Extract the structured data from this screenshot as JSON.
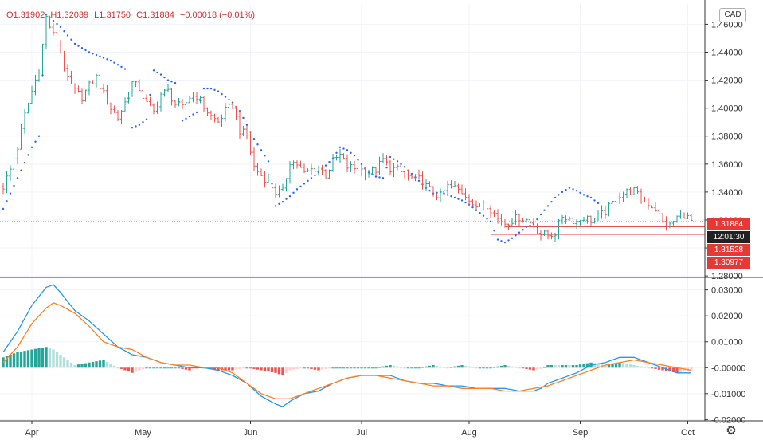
{
  "header": {
    "open": "O1.31902",
    "high": "H1.32039",
    "low": "L1.31750",
    "close": "C1.31884",
    "change": "−0.00018 (−0.01%)",
    "currency_button": "CAD"
  },
  "price_tags": {
    "last": "1.31884",
    "countdown": "12:01:30",
    "line1": "1.31528",
    "line2": "1.30977"
  },
  "colors": {
    "up": "#26a69a",
    "down": "#ef5350",
    "psar": "#2962ff",
    "macd": "#2196f3",
    "signal": "#ff7f22",
    "hist_up_strong": "#26a69a",
    "hist_up_weak": "#b2dfdb",
    "hist_down_strong": "#ef5350",
    "hist_down_weak": "#ffcdd2",
    "hline": "#e53935"
  },
  "icons": {
    "settings": "gear-icon"
  },
  "chart_data": [
    {
      "type": "candlestick",
      "title": "",
      "y_ticks": [
        "1.46000",
        "1.44000",
        "1.42000",
        "1.40000",
        "1.38000",
        "1.36000",
        "1.34000",
        "1.32000",
        "1.30000",
        "1.28000"
      ],
      "ylim": [
        1.2795,
        1.4745
      ],
      "x_ticks": [
        "Apr",
        "May",
        "Jun",
        "Jul",
        "Aug",
        "Sep",
        "Oct"
      ],
      "x_tick_days": [
        8,
        39,
        69,
        100,
        130,
        161,
        191
      ],
      "last_price": 1.31884,
      "horizontal_lines": [
        1.31528,
        1.30977
      ],
      "ohlc_keypoints": [
        [
          0,
          1.344
        ],
        [
          2,
          1.356
        ],
        [
          4,
          1.372
        ],
        [
          6,
          1.395
        ],
        [
          8,
          1.412
        ],
        [
          10,
          1.428
        ],
        [
          11,
          1.445
        ],
        [
          12,
          1.465
        ],
        [
          14,
          1.452
        ],
        [
          16,
          1.44
        ],
        [
          18,
          1.42
        ],
        [
          20,
          1.412
        ],
        [
          22,
          1.408
        ],
        [
          24,
          1.416
        ],
        [
          26,
          1.422
        ],
        [
          28,
          1.41
        ],
        [
          30,
          1.4
        ],
        [
          32,
          1.393
        ],
        [
          34,
          1.404
        ],
        [
          36,
          1.418
        ],
        [
          38,
          1.414
        ],
        [
          40,
          1.403
        ],
        [
          42,
          1.397
        ],
        [
          44,
          1.41
        ],
        [
          46,
          1.412
        ],
        [
          48,
          1.403
        ],
        [
          50,
          1.4
        ],
        [
          52,
          1.408
        ],
        [
          54,
          1.409
        ],
        [
          56,
          1.401
        ],
        [
          58,
          1.394
        ],
        [
          60,
          1.39
        ],
        [
          62,
          1.398
        ],
        [
          64,
          1.402
        ],
        [
          66,
          1.384
        ],
        [
          68,
          1.38
        ],
        [
          70,
          1.358
        ],
        [
          72,
          1.352
        ],
        [
          74,
          1.348
        ],
        [
          76,
          1.34
        ],
        [
          78,
          1.34
        ],
        [
          80,
          1.362
        ],
        [
          82,
          1.36
        ],
        [
          84,
          1.353
        ],
        [
          86,
          1.356
        ],
        [
          88,
          1.358
        ],
        [
          90,
          1.352
        ],
        [
          92,
          1.362
        ],
        [
          94,
          1.366
        ],
        [
          96,
          1.358
        ],
        [
          98,
          1.357
        ],
        [
          100,
          1.356
        ],
        [
          102,
          1.354
        ],
        [
          104,
          1.356
        ],
        [
          106,
          1.363
        ],
        [
          108,
          1.357
        ],
        [
          110,
          1.356
        ],
        [
          112,
          1.352
        ],
        [
          114,
          1.35
        ],
        [
          116,
          1.349
        ],
        [
          118,
          1.344
        ],
        [
          120,
          1.339
        ],
        [
          122,
          1.337
        ],
        [
          124,
          1.344
        ],
        [
          126,
          1.343
        ],
        [
          128,
          1.34
        ],
        [
          130,
          1.336
        ],
        [
          132,
          1.327
        ],
        [
          134,
          1.334
        ],
        [
          136,
          1.328
        ],
        [
          138,
          1.321
        ],
        [
          140,
          1.318
        ],
        [
          142,
          1.32
        ],
        [
          144,
          1.322
        ],
        [
          146,
          1.32
        ],
        [
          148,
          1.316
        ],
        [
          150,
          1.31
        ],
        [
          152,
          1.309
        ],
        [
          154,
          1.311
        ],
        [
          156,
          1.323
        ],
        [
          158,
          1.321
        ],
        [
          160,
          1.319
        ],
        [
          162,
          1.322
        ],
        [
          164,
          1.32
        ],
        [
          166,
          1.322
        ],
        [
          168,
          1.326
        ],
        [
          170,
          1.332
        ],
        [
          172,
          1.338
        ],
        [
          174,
          1.34
        ],
        [
          176,
          1.341
        ],
        [
          178,
          1.334
        ],
        [
          180,
          1.332
        ],
        [
          182,
          1.328
        ],
        [
          184,
          1.318
        ],
        [
          186,
          1.316
        ],
        [
          188,
          1.322
        ],
        [
          190,
          1.324
        ],
        [
          192,
          1.319
        ]
      ],
      "parabolic_sar_keypoints": [
        [
          0,
          1.328
        ],
        [
          4,
          1.35
        ],
        [
          8,
          1.372
        ],
        [
          10,
          1.38
        ],
        [
          12,
          1.467
        ],
        [
          16,
          1.458
        ],
        [
          20,
          1.446
        ],
        [
          24,
          1.44
        ],
        [
          28,
          1.436
        ],
        [
          30,
          1.434
        ],
        [
          32,
          1.431
        ],
        [
          34,
          1.428
        ],
        [
          36,
          1.386
        ],
        [
          38,
          1.388
        ],
        [
          40,
          1.392
        ],
        [
          42,
          1.427
        ],
        [
          44,
          1.424
        ],
        [
          46,
          1.42
        ],
        [
          48,
          1.418
        ],
        [
          50,
          1.391
        ],
        [
          52,
          1.394
        ],
        [
          54,
          1.397
        ],
        [
          56,
          1.414
        ],
        [
          58,
          1.414
        ],
        [
          60,
          1.412
        ],
        [
          62,
          1.408
        ],
        [
          64,
          1.404
        ],
        [
          66,
          1.398
        ],
        [
          68,
          1.388
        ],
        [
          70,
          1.378
        ],
        [
          72,
          1.37
        ],
        [
          74,
          1.362
        ],
        [
          76,
          1.33
        ],
        [
          78,
          1.333
        ],
        [
          80,
          1.337
        ],
        [
          82,
          1.342
        ],
        [
          84,
          1.346
        ],
        [
          86,
          1.35
        ],
        [
          88,
          1.354
        ],
        [
          90,
          1.359
        ],
        [
          92,
          1.364
        ],
        [
          94,
          1.372
        ],
        [
          96,
          1.37
        ],
        [
          98,
          1.366
        ],
        [
          100,
          1.36
        ],
        [
          102,
          1.354
        ],
        [
          104,
          1.351
        ],
        [
          106,
          1.35
        ],
        [
          108,
          1.365
        ],
        [
          110,
          1.362
        ],
        [
          112,
          1.358
        ],
        [
          114,
          1.353
        ],
        [
          116,
          1.348
        ],
        [
          118,
          1.343
        ],
        [
          120,
          1.339
        ],
        [
          122,
          1.34
        ],
        [
          124,
          1.338
        ],
        [
          126,
          1.336
        ],
        [
          128,
          1.334
        ],
        [
          130,
          1.331
        ],
        [
          132,
          1.327
        ],
        [
          134,
          1.323
        ],
        [
          136,
          1.319
        ],
        [
          138,
          1.306
        ],
        [
          140,
          1.304
        ],
        [
          142,
          1.307
        ],
        [
          144,
          1.311
        ],
        [
          146,
          1.315
        ],
        [
          148,
          1.317
        ],
        [
          150,
          1.324
        ],
        [
          152,
          1.33
        ],
        [
          154,
          1.336
        ],
        [
          156,
          1.34
        ],
        [
          158,
          1.343
        ],
        [
          160,
          1.341
        ],
        [
          162,
          1.338
        ],
        [
          164,
          1.336
        ],
        [
          166,
          1.332
        ]
      ]
    },
    {
      "type": "macd",
      "y_ticks": [
        "0.03000",
        "0.02000",
        "0.01000",
        "-0.00000",
        "-0.01000",
        "-0.02000"
      ],
      "ylim": [
        -0.0205,
        0.0345
      ],
      "macd_keypoints": [
        [
          0,
          0.006
        ],
        [
          4,
          0.014
        ],
        [
          8,
          0.024
        ],
        [
          12,
          0.031
        ],
        [
          14,
          0.032
        ],
        [
          16,
          0.029
        ],
        [
          20,
          0.022
        ],
        [
          24,
          0.018
        ],
        [
          28,
          0.013
        ],
        [
          32,
          0.008
        ],
        [
          36,
          0.005
        ],
        [
          40,
          0.004
        ],
        [
          44,
          0.002
        ],
        [
          48,
          0.001
        ],
        [
          52,
          0.0
        ],
        [
          56,
          0.0
        ],
        [
          60,
          -0.001
        ],
        [
          64,
          -0.003
        ],
        [
          68,
          -0.006
        ],
        [
          72,
          -0.011
        ],
        [
          76,
          -0.014
        ],
        [
          78,
          -0.015
        ],
        [
          80,
          -0.013
        ],
        [
          84,
          -0.01
        ],
        [
          88,
          -0.009
        ],
        [
          92,
          -0.006
        ],
        [
          96,
          -0.004
        ],
        [
          100,
          -0.003
        ],
        [
          104,
          -0.003
        ],
        [
          108,
          -0.003
        ],
        [
          112,
          -0.005
        ],
        [
          116,
          -0.006
        ],
        [
          120,
          -0.006
        ],
        [
          124,
          -0.007
        ],
        [
          128,
          -0.007
        ],
        [
          132,
          -0.008
        ],
        [
          136,
          -0.008
        ],
        [
          140,
          -0.008
        ],
        [
          144,
          -0.009
        ],
        [
          148,
          -0.009
        ],
        [
          150,
          -0.008
        ],
        [
          152,
          -0.006
        ],
        [
          156,
          -0.004
        ],
        [
          160,
          -0.002
        ],
        [
          164,
          0.001
        ],
        [
          168,
          0.002
        ],
        [
          172,
          0.004
        ],
        [
          176,
          0.004
        ],
        [
          178,
          0.003
        ],
        [
          182,
          0.001
        ],
        [
          186,
          -0.001
        ],
        [
          188,
          -0.002
        ],
        [
          192,
          -0.002
        ]
      ],
      "signal_keypoints": [
        [
          0,
          0.002
        ],
        [
          4,
          0.008
        ],
        [
          8,
          0.017
        ],
        [
          12,
          0.023
        ],
        [
          14,
          0.025
        ],
        [
          16,
          0.024
        ],
        [
          20,
          0.021
        ],
        [
          24,
          0.016
        ],
        [
          28,
          0.01
        ],
        [
          32,
          0.008
        ],
        [
          36,
          0.007
        ],
        [
          40,
          0.004
        ],
        [
          44,
          0.002
        ],
        [
          48,
          0.001
        ],
        [
          52,
          0.001
        ],
        [
          56,
          0.0
        ],
        [
          60,
          0.0
        ],
        [
          64,
          -0.002
        ],
        [
          68,
          -0.006
        ],
        [
          72,
          -0.01
        ],
        [
          76,
          -0.012
        ],
        [
          80,
          -0.012
        ],
        [
          84,
          -0.01
        ],
        [
          88,
          -0.008
        ],
        [
          92,
          -0.006
        ],
        [
          96,
          -0.004
        ],
        [
          100,
          -0.003
        ],
        [
          104,
          -0.003
        ],
        [
          108,
          -0.004
        ],
        [
          112,
          -0.005
        ],
        [
          116,
          -0.006
        ],
        [
          120,
          -0.007
        ],
        [
          124,
          -0.007
        ],
        [
          128,
          -0.008
        ],
        [
          132,
          -0.008
        ],
        [
          136,
          -0.008
        ],
        [
          140,
          -0.009
        ],
        [
          144,
          -0.009
        ],
        [
          148,
          -0.008
        ],
        [
          152,
          -0.007
        ],
        [
          156,
          -0.005
        ],
        [
          160,
          -0.003
        ],
        [
          164,
          -0.001
        ],
        [
          168,
          0.001
        ],
        [
          172,
          0.002
        ],
        [
          176,
          0.003
        ],
        [
          180,
          0.002
        ],
        [
          184,
          0.001
        ],
        [
          188,
          0.0
        ],
        [
          192,
          -0.001
        ]
      ]
    }
  ]
}
